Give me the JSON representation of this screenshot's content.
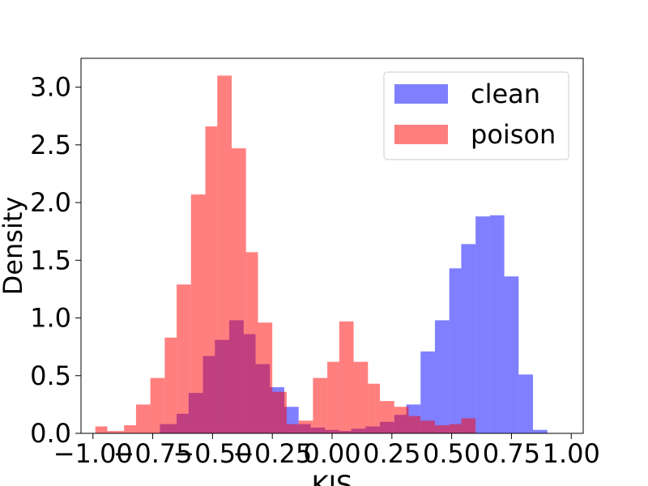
{
  "chart_data": {
    "type": "bar",
    "xlabel": "KIS",
    "ylabel": "Density",
    "xlim": [
      -1.05,
      1.05
    ],
    "ylim": [
      0,
      3.25
    ],
    "xticks": [
      -1.0,
      -0.75,
      -0.5,
      -0.25,
      0.0,
      0.25,
      0.5,
      0.75,
      1.0
    ],
    "xtick_labels": [
      "−1.00",
      "−0.75",
      "−0.50",
      "−0.25",
      "0.00",
      "0.25",
      "0.50",
      "0.75",
      "1.00"
    ],
    "yticks": [
      0.0,
      0.5,
      1.0,
      1.5,
      2.0,
      2.5,
      3.0
    ],
    "ytick_labels": [
      "0.0",
      "0.5",
      "1.0",
      "1.5",
      "2.0",
      "2.5",
      "3.0"
    ],
    "legend": {
      "position": "top-right"
    },
    "series": [
      {
        "name": "clean",
        "color": "#0000ff",
        "opacity": 0.5,
        "bin_width": 0.0619,
        "bins": [
          [
            -0.72,
            -0.65,
            0.08
          ],
          [
            -0.65,
            -0.6,
            0.17
          ],
          [
            -0.6,
            -0.54,
            0.35
          ],
          [
            -0.54,
            -0.49,
            0.67
          ],
          [
            -0.49,
            -0.43,
            0.81
          ],
          [
            -0.43,
            -0.37,
            0.98
          ],
          [
            -0.37,
            -0.32,
            0.86
          ],
          [
            -0.32,
            -0.26,
            0.6
          ],
          [
            -0.26,
            -0.2,
            0.4
          ],
          [
            -0.2,
            -0.14,
            0.23
          ],
          [
            -0.14,
            -0.09,
            0.08
          ],
          [
            -0.09,
            -0.03,
            0.05
          ],
          [
            -0.03,
            0.03,
            0.03
          ],
          [
            0.03,
            0.08,
            0.02
          ],
          [
            0.08,
            0.14,
            0.04
          ],
          [
            0.14,
            0.2,
            0.06
          ],
          [
            0.2,
            0.26,
            0.1
          ],
          [
            0.26,
            0.31,
            0.16
          ],
          [
            0.31,
            0.37,
            0.25
          ],
          [
            0.37,
            0.43,
            0.71
          ],
          [
            0.43,
            0.49,
            0.98
          ],
          [
            0.49,
            0.54,
            1.43
          ],
          [
            0.54,
            0.6,
            1.64
          ],
          [
            0.6,
            0.66,
            1.88
          ],
          [
            0.66,
            0.72,
            1.89
          ],
          [
            0.72,
            0.78,
            1.36
          ],
          [
            0.78,
            0.84,
            0.51
          ],
          [
            0.84,
            0.9,
            0.03
          ]
        ]
      },
      {
        "name": "poison",
        "color": "#ff0000",
        "opacity": 0.5,
        "bin_width": 0.0619,
        "bins": [
          [
            -0.99,
            -0.94,
            0.06
          ],
          [
            -0.94,
            -0.87,
            0.02
          ],
          [
            -0.87,
            -0.82,
            0.07
          ],
          [
            -0.82,
            -0.76,
            0.25
          ],
          [
            -0.76,
            -0.7,
            0.48
          ],
          [
            -0.7,
            -0.65,
            0.83
          ],
          [
            -0.65,
            -0.59,
            1.29
          ],
          [
            -0.59,
            -0.53,
            2.07
          ],
          [
            -0.53,
            -0.48,
            2.66
          ],
          [
            -0.48,
            -0.42,
            3.1
          ],
          [
            -0.42,
            -0.36,
            2.47
          ],
          [
            -0.36,
            -0.31,
            1.57
          ],
          [
            -0.31,
            -0.25,
            0.96
          ],
          [
            -0.25,
            -0.19,
            0.36
          ],
          [
            -0.19,
            -0.14,
            0.08
          ],
          [
            -0.14,
            -0.08,
            0.11
          ],
          [
            -0.08,
            -0.02,
            0.48
          ],
          [
            -0.02,
            0.03,
            0.62
          ],
          [
            0.03,
            0.09,
            0.97
          ],
          [
            0.09,
            0.15,
            0.62
          ],
          [
            0.15,
            0.2,
            0.43
          ],
          [
            0.2,
            0.26,
            0.28
          ],
          [
            0.26,
            0.32,
            0.23
          ],
          [
            0.32,
            0.37,
            0.15
          ],
          [
            0.37,
            0.43,
            0.11
          ],
          [
            0.43,
            0.49,
            0.07
          ],
          [
            0.49,
            0.54,
            0.08
          ],
          [
            0.54,
            0.6,
            0.13
          ]
        ]
      }
    ]
  }
}
